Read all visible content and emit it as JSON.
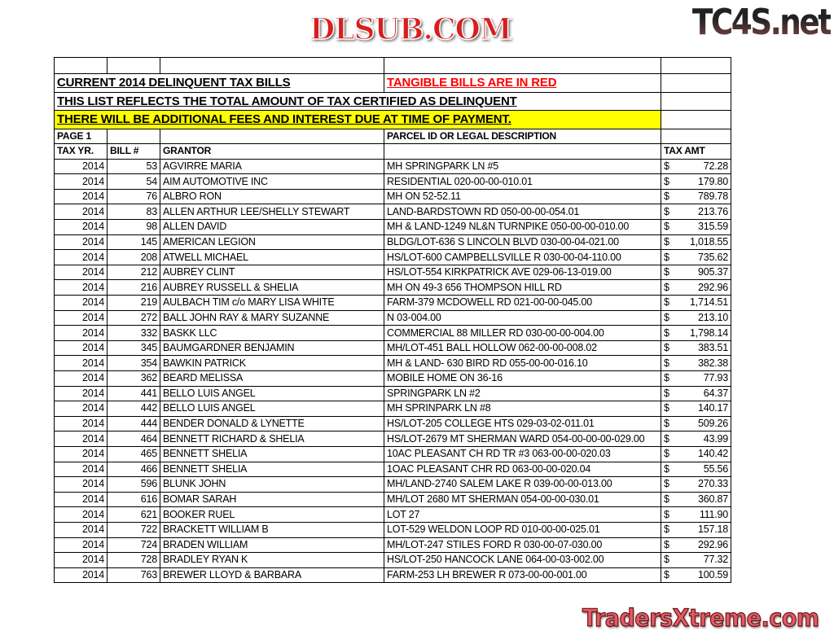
{
  "watermarks": {
    "top": "TC4S.net",
    "middle": "DLSUB.COM",
    "bottom": "TradersXtreme.com"
  },
  "colors": {
    "tangible_red": "#ff0000",
    "highlight_yellow": "#ffff00"
  },
  "header": {
    "title": "CURRENT 2014 DELINQUENT TAX BILLS",
    "tangible_note": "TANGIBLE BILLS ARE IN RED",
    "subtitle": "THIS LIST REFLECTS THE TOTAL AMOUNT OF TAX CERTIFIED AS DELINQUENT",
    "fees_note": "THERE WILL BE ADDITIONAL FEES AND INTEREST DUE AT TIME OF PAYMENT.",
    "page": "PAGE 1",
    "parcel_header": "PARCEL ID OR LEGAL DESCRIPTION"
  },
  "columns": {
    "year": "TAX YR.",
    "bill": "BILL #",
    "grantor": "GRANTOR",
    "amount": "TAX AMT",
    "currency": "$"
  },
  "rows": [
    {
      "year": "2014",
      "bill": "53",
      "grantor": "AGVIRRE  MARIA",
      "parcel": "MH SPRINGPARK LN #5",
      "amount": "72.28"
    },
    {
      "year": "2014",
      "bill": "54",
      "grantor": "AIM AUTOMOTIVE INC",
      "parcel": "RESIDENTIAL 020-00-00-010.01",
      "amount": "179.80"
    },
    {
      "year": "2014",
      "bill": "76",
      "grantor": "ALBRO RON",
      "parcel": "MH ON 52-52.11",
      "amount": "789.78"
    },
    {
      "year": "2014",
      "bill": "83",
      "grantor": "ALLEN ARTHUR LEE/SHELLY STEWART",
      "parcel": "LAND-BARDSTOWN RD 050-00-00-054.01",
      "amount": "213.76"
    },
    {
      "year": "2014",
      "bill": "98",
      "grantor": "ALLEN DAVID",
      "parcel": "MH & LAND-1249 NL&N TURNPIKE 050-00-00-010.00",
      "amount": "315.59"
    },
    {
      "year": "2014",
      "bill": "145",
      "grantor": "AMERICAN LEGION",
      "parcel": "BLDG/LOT-636 S LINCOLN BLVD 030-00-04-021.00",
      "amount": "1,018.55"
    },
    {
      "year": "2014",
      "bill": "208",
      "grantor": "ATWELL MICHAEL",
      "parcel": "HS/LOT-600 CAMPBELLSVILLE R 030-00-04-110.00",
      "amount": "735.62"
    },
    {
      "year": "2014",
      "bill": "212",
      "grantor": "AUBREY CLINT",
      "parcel": "HS/LOT-554 KIRKPATRICK AVE 029-06-13-019.00",
      "amount": "905.37"
    },
    {
      "year": "2014",
      "bill": "216",
      "grantor": "AUBREY RUSSELL & SHELIA",
      "parcel": "MH ON 49-3 656 THOMPSON HILL RD",
      "amount": "292.96"
    },
    {
      "year": "2014",
      "bill": "219",
      "grantor": "AULBACH TIM  c/o MARY LISA WHITE",
      "parcel": "FARM-379 MCDOWELL RD 021-00-00-045.00",
      "amount": "1,714.51"
    },
    {
      "year": "2014",
      "bill": "272",
      "grantor": "BALL JOHN RAY & MARY SUZANNE",
      "parcel": "N 03-004.00",
      "amount": "213.10"
    },
    {
      "year": "2014",
      "bill": "332",
      "grantor": "BASKK LLC",
      "parcel": "COMMERCIAL 88 MILLER RD 030-00-00-004.00",
      "amount": "1,798.14"
    },
    {
      "year": "2014",
      "bill": "345",
      "grantor": "BAUMGARDNER BENJAMIN",
      "parcel": "MH/LOT-451 BALL HOLLOW  062-00-00-008.02",
      "amount": "383.51"
    },
    {
      "year": "2014",
      "bill": "354",
      "grantor": "BAWKIN PATRICK",
      "parcel": "MH & LAND- 630 BIRD RD 055-00-00-016.10",
      "amount": "382.38"
    },
    {
      "year": "2014",
      "bill": "362",
      "grantor": "BEARD MELISSA",
      "parcel": "MOBILE HOME ON 36-16",
      "amount": "77.93"
    },
    {
      "year": "2014",
      "bill": "441",
      "grantor": "BELLO LUIS ANGEL",
      "parcel": "SPRINGPARK LN #2",
      "amount": "64.37"
    },
    {
      "year": "2014",
      "bill": "442",
      "grantor": "BELLO LUIS ANGEL",
      "parcel": "MH SPRINPARK LN #8",
      "amount": "140.17"
    },
    {
      "year": "2014",
      "bill": "444",
      "grantor": "BENDER DONALD & LYNETTE",
      "parcel": "HS/LOT-205 COLLEGE HTS 029-03-02-011.01",
      "amount": "509.26"
    },
    {
      "year": "2014",
      "bill": "464",
      "grantor": "BENNETT RICHARD & SHELIA",
      "parcel": "HS/LOT-2679 MT SHERMAN WARD 054-00-00-00-029.00",
      "amount": "43.99"
    },
    {
      "year": "2014",
      "bill": "465",
      "grantor": "BENNETT SHELIA",
      "parcel": "10AC PLEASANT CH RD TR #3 063-00-00-020.03",
      "amount": "140.42"
    },
    {
      "year": "2014",
      "bill": "466",
      "grantor": "BENNETT SHELIA",
      "parcel": "1OAC PLEASANT CHR RD 063-00-00-020.04",
      "amount": "55.56"
    },
    {
      "year": "2014",
      "bill": "596",
      "grantor": "BLUNK JOHN",
      "parcel": "MH/LAND-2740 SALEM LAKE R 039-00-00-013.00",
      "amount": "270.33"
    },
    {
      "year": "2014",
      "bill": "616",
      "grantor": "BOMAR SARAH",
      "parcel": "MH/LOT 2680 MT SHERMAN 054-00-00-030.01",
      "amount": "360.87"
    },
    {
      "year": "2014",
      "bill": "621",
      "grantor": "BOOKER RUEL",
      "parcel": "LOT 27",
      "amount": "111.90"
    },
    {
      "year": "2014",
      "bill": "722",
      "grantor": "BRACKETT WILLIAM B",
      "parcel": "LOT-529 WELDON LOOP RD 010-00-00-025.01",
      "amount": "157.18"
    },
    {
      "year": "2014",
      "bill": "724",
      "grantor": "BRADEN WILLIAM",
      "parcel": "MH/LOT-247 STILES FORD R 030-00-07-030.00",
      "amount": "292.96"
    },
    {
      "year": "2014",
      "bill": "728",
      "grantor": "BRADLEY RYAN K",
      "parcel": "HS/LOT-250 HANCOCK LANE 064-00-03-002.00",
      "amount": "77.32"
    },
    {
      "year": "2014",
      "bill": "763",
      "grantor": "BREWER LLOYD & BARBARA",
      "parcel": "FARM-253 LH BREWER R 073-00-00-001.00",
      "amount": "100.59"
    }
  ]
}
